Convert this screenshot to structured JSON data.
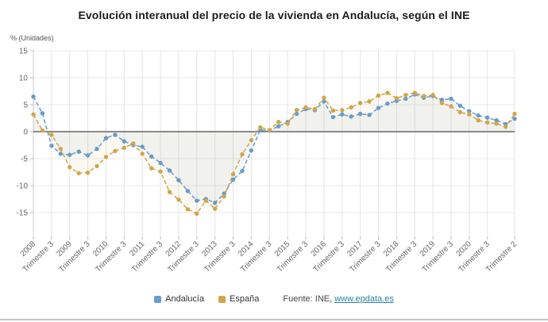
{
  "title": "Evolución interanual del precio de la vivienda en Andalucía, según el INE",
  "y_axis_unit": "% (Unidades)",
  "legend": {
    "items": [
      {
        "label": "Andalucía",
        "color": "#6a9bc9"
      },
      {
        "label": "España",
        "color": "#d1a54b"
      }
    ]
  },
  "source": {
    "prefix": "Fuente: INE, ",
    "link": "www.epdata.es"
  },
  "chart_data": {
    "type": "line",
    "title": "Evolución interanual del precio de la vivienda en Andalucía, según el INE",
    "xlabel": "",
    "ylabel": "% (Unidades)",
    "ylim": [
      -15,
      15
    ],
    "y_ticks": [
      15,
      10,
      5,
      0,
      -5,
      -10,
      -15
    ],
    "grid": true,
    "legend_position": "bottom",
    "line_style": "dashed",
    "x_start": "2008 Trimestre 1",
    "x_end": "2021 Trimestre 2",
    "x_tick_labels": [
      {
        "index": 0,
        "label": "2008"
      },
      {
        "index": 2,
        "label": "Trimestre 3"
      },
      {
        "index": 4,
        "label": "2009"
      },
      {
        "index": 6,
        "label": "Trimestre 3"
      },
      {
        "index": 8,
        "label": "2010"
      },
      {
        "index": 10,
        "label": "Trimestre 3"
      },
      {
        "index": 12,
        "label": "2011"
      },
      {
        "index": 14,
        "label": "Trimestre 3"
      },
      {
        "index": 16,
        "label": "2012"
      },
      {
        "index": 18,
        "label": "Trimestre 3"
      },
      {
        "index": 20,
        "label": "2013"
      },
      {
        "index": 22,
        "label": "Trimestre 3"
      },
      {
        "index": 24,
        "label": "2014"
      },
      {
        "index": 26,
        "label": "Trimestre 3"
      },
      {
        "index": 28,
        "label": "2015"
      },
      {
        "index": 30,
        "label": "Trimestre 3"
      },
      {
        "index": 32,
        "label": "2016"
      },
      {
        "index": 34,
        "label": "Trimestre 3"
      },
      {
        "index": 36,
        "label": "2017"
      },
      {
        "index": 38,
        "label": "Trimestre 3"
      },
      {
        "index": 40,
        "label": "2018"
      },
      {
        "index": 42,
        "label": "Trimestre 3"
      },
      {
        "index": 44,
        "label": "2019"
      },
      {
        "index": 46,
        "label": "Trimestre 3"
      },
      {
        "index": 48,
        "label": "2020"
      },
      {
        "index": 50,
        "label": "Trimestre 3"
      },
      {
        "index": 53,
        "label": "Trimestre 2"
      }
    ],
    "series": [
      {
        "name": "Andalucía",
        "color": "#6a9bc9",
        "values": [
          6.5,
          3.4,
          -2.6,
          -4.1,
          -4.3,
          -3.7,
          -4.4,
          -3.2,
          -1.2,
          -0.6,
          -1.8,
          -2.5,
          -2.8,
          -4.6,
          -5.8,
          -7.2,
          -9.0,
          -11.0,
          -12.8,
          -12.5,
          -13.2,
          -11.5,
          -8.9,
          -7.3,
          -3.5,
          0.3,
          0.2,
          1.0,
          1.8,
          3.3,
          4.2,
          4.0,
          5.6,
          2.7,
          3.2,
          2.8,
          3.3,
          3.1,
          4.4,
          5.2,
          5.7,
          6.1,
          6.9,
          6.3,
          6.6,
          5.9,
          6.1,
          4.8,
          3.8,
          3.0,
          2.6,
          2.1,
          1.4,
          2.4
        ]
      },
      {
        "name": "España",
        "color": "#d1a54b",
        "values": [
          3.2,
          0.2,
          -0.6,
          -3.2,
          -6.6,
          -7.7,
          -7.6,
          -6.4,
          -4.7,
          -3.6,
          -3.0,
          -2.2,
          -4.1,
          -6.8,
          -7.4,
          -11.2,
          -12.6,
          -14.4,
          -15.2,
          -12.8,
          -14.3,
          -12.0,
          -7.9,
          -4.2,
          -1.6,
          0.8,
          0.3,
          1.8,
          1.5,
          4.0,
          4.5,
          4.2,
          6.3,
          3.9,
          4.0,
          4.5,
          5.3,
          5.6,
          6.7,
          7.2,
          6.2,
          6.8,
          7.2,
          6.6,
          6.8,
          5.3,
          4.7,
          3.6,
          3.2,
          2.1,
          1.7,
          1.5,
          0.9,
          3.3
        ]
      }
    ]
  }
}
